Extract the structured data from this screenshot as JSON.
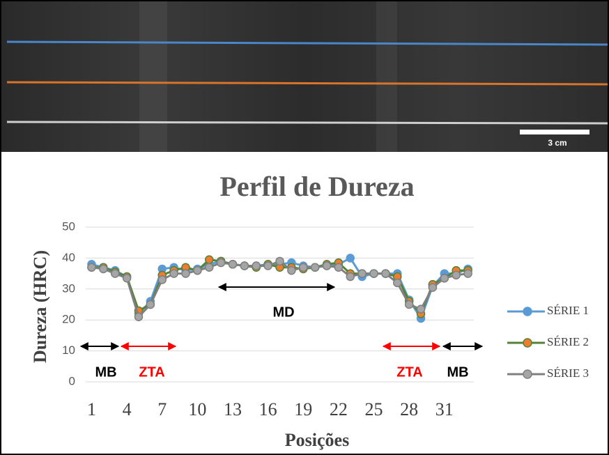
{
  "photo": {
    "scale_label": "3 cm"
  },
  "chart_data": {
    "type": "line",
    "title": "Perfil de Dureza",
    "x_label": "Posições",
    "y_label": "Dureza (HRC)",
    "categories": [
      "1",
      null,
      null,
      "4",
      null,
      null,
      "7",
      null,
      null,
      "10",
      null,
      null,
      "13",
      null,
      null,
      "16",
      null,
      null,
      "19",
      null,
      null,
      "22",
      null,
      null,
      "25",
      null,
      null,
      "28",
      null,
      null,
      "31",
      null,
      null
    ],
    "series": [
      {
        "name": "SÉRIE 1",
        "color": "#5b9bd5",
        "marker_color": "#5b9bd5",
        "values": [
          38,
          37,
          36,
          34,
          22,
          26,
          36.5,
          37,
          36,
          36.5,
          38,
          39,
          38,
          37.5,
          37.5,
          38,
          38,
          38.5,
          37.5,
          37,
          37.5,
          38,
          40,
          34,
          35,
          35,
          35,
          26.5,
          20.5,
          31,
          35,
          35,
          36.5
        ]
      },
      {
        "name": "SÉRIE 2",
        "color": "#548235",
        "marker_color": "#ed7d31",
        "values": [
          37,
          37,
          35.5,
          34,
          23,
          25,
          34.5,
          36,
          37,
          36,
          39.5,
          39,
          38,
          37.5,
          37,
          38,
          37,
          37,
          36.5,
          37,
          38,
          38.5,
          35,
          35,
          35,
          35,
          34,
          26,
          22,
          31.5,
          33.5,
          36,
          36
        ]
      },
      {
        "name": "SÉRIE 3",
        "color": "#7f7f7f",
        "marker_color": "#a5a5a5",
        "values": [
          37,
          36.5,
          35,
          33.5,
          21,
          25,
          33,
          35,
          35,
          36,
          37,
          38.5,
          38,
          37.5,
          37.5,
          37.5,
          39,
          36,
          37,
          37,
          37.5,
          37,
          34,
          35,
          35,
          35,
          32,
          25,
          23.5,
          30.5,
          33.5,
          34.5,
          35
        ]
      }
    ],
    "ylim": [
      0,
      50
    ],
    "yticks": [
      0,
      10,
      20,
      30,
      40,
      50
    ],
    "grid": true,
    "legend": "right",
    "annotations": [
      {
        "text": "MB",
        "color": "#000000"
      },
      {
        "text": "ZTA",
        "color": "#ff0000"
      },
      {
        "text": "MD",
        "color": "#000000"
      },
      {
        "text": "ZTA",
        "color": "#ff0000"
      },
      {
        "text": "MB",
        "color": "#000000"
      }
    ]
  }
}
